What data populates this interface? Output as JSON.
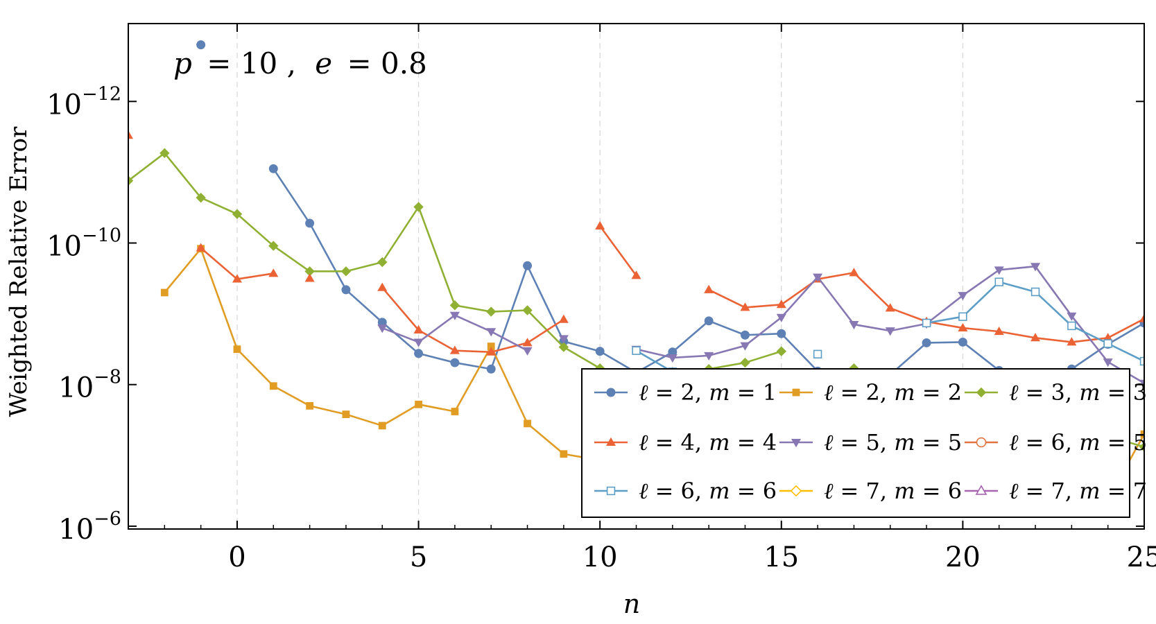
{
  "chart_data": {
    "type": "line",
    "xlabel": "n",
    "ylabel": "Weighted  Relative  Error",
    "annotation": {
      "p_label": "p",
      "p_value": "= 10 ,",
      "e_label": "e",
      "e_value": "= 0.8"
    },
    "xlim": [
      -3,
      25
    ],
    "ylim_log10": [
      -13.1,
      -5.96
    ],
    "y_scale": "log",
    "grid": true,
    "legend_position": "bottom-right",
    "x_ticks": [
      0,
      5,
      10,
      15,
      20,
      25
    ],
    "y_ticks": [
      {
        "base": "10",
        "exp": "−6",
        "value": -6
      },
      {
        "base": "10",
        "exp": "−8",
        "value": -8
      },
      {
        "base": "10",
        "exp": "−10",
        "value": -10
      },
      {
        "base": "10",
        "exp": "−12",
        "value": -12
      }
    ],
    "series": [
      {
        "name_l": "2",
        "name_m": "1",
        "color": "#5E81B5",
        "marker": "circle-filled",
        "points": [
          [
            -1,
            -12.8
          ],
          [
            1,
            -11.05
          ],
          [
            2,
            -10.28
          ],
          [
            3,
            -9.34
          ],
          [
            4,
            -8.88
          ],
          [
            5,
            -8.44
          ],
          [
            6,
            -8.31
          ],
          [
            7,
            -8.22
          ],
          [
            8,
            -9.68
          ],
          [
            9,
            -8.61
          ],
          [
            10,
            -8.47
          ],
          [
            11,
            -8.17
          ],
          [
            12,
            -8.46
          ],
          [
            13,
            -8.9
          ],
          [
            14,
            -8.7
          ],
          [
            15,
            -8.72
          ],
          [
            16,
            -8.19
          ],
          [
            17,
            -8.05
          ],
          [
            18,
            -8.14
          ],
          [
            19,
            -8.59
          ],
          [
            20,
            -8.6
          ],
          [
            21,
            -8.2
          ],
          [
            22,
            -8.13
          ],
          [
            23,
            -8.22
          ],
          [
            24,
            -8.57
          ],
          [
            25,
            -8.87
          ]
        ],
        "breaks": [
          0
        ]
      },
      {
        "name_l": "2",
        "name_m": "2",
        "color": "#E19C24",
        "marker": "square-filled",
        "points": [
          [
            -2,
            -9.3
          ],
          [
            -1,
            -9.92
          ],
          [
            0,
            -8.5
          ],
          [
            1,
            -7.98
          ],
          [
            2,
            -7.7
          ],
          [
            3,
            -7.58
          ],
          [
            4,
            -7.42
          ],
          [
            5,
            -7.72
          ],
          [
            6,
            -7.62
          ],
          [
            7,
            -8.54
          ],
          [
            8,
            -7.45
          ],
          [
            9,
            -7.02
          ],
          [
            10,
            -6.93
          ],
          [
            11,
            -6.9
          ],
          [
            12,
            -6.78
          ],
          [
            13,
            -6.61
          ],
          [
            14,
            -6.51
          ],
          [
            15,
            -6.48
          ],
          [
            16,
            -6.56
          ],
          [
            17,
            -6.7
          ],
          [
            18,
            -6.79
          ],
          [
            19,
            -6.69
          ],
          [
            20,
            -6.47
          ],
          [
            21,
            -6.29
          ],
          [
            22,
            -6.19
          ],
          [
            23,
            -6.2
          ],
          [
            24,
            -6.38
          ],
          [
            25,
            -7.3
          ]
        ],
        "breaks": []
      },
      {
        "name_l": "3",
        "name_m": "3",
        "color": "#8FB032",
        "marker": "diamond-filled",
        "points": [
          [
            -3,
            -10.88
          ],
          [
            -2,
            -11.27
          ],
          [
            -1,
            -10.64
          ],
          [
            0,
            -10.41
          ],
          [
            1,
            -9.96
          ],
          [
            2,
            -9.6
          ],
          [
            3,
            -9.6
          ],
          [
            4,
            -9.73
          ],
          [
            5,
            -10.51
          ],
          [
            6,
            -9.12
          ],
          [
            7,
            -9.03
          ],
          [
            8,
            -9.05
          ],
          [
            9,
            -8.53
          ],
          [
            10,
            -8.23
          ],
          [
            11,
            -8.13
          ],
          [
            12,
            -8.18
          ],
          [
            13,
            -8.22
          ],
          [
            14,
            -8.31
          ],
          [
            15,
            -8.47
          ],
          [
            17,
            -8.23
          ],
          [
            18,
            -7.9
          ],
          [
            19,
            -7.73
          ],
          [
            20,
            -7.64
          ],
          [
            21,
            -7.58
          ],
          [
            22,
            -7.51
          ],
          [
            23,
            -7.41
          ],
          [
            24,
            -7.27
          ],
          [
            25,
            -7.12
          ]
        ],
        "breaks": [
          15
        ]
      },
      {
        "name_l": "4",
        "name_m": "4",
        "color": "#EB6235",
        "marker": "triangle-up-filled",
        "points": [
          [
            -3,
            -11.52
          ],
          [
            -1,
            -9.93
          ],
          [
            0,
            -9.49
          ],
          [
            1,
            -9.57
          ],
          [
            2,
            -9.5
          ],
          [
            4,
            -9.37
          ],
          [
            5,
            -8.77
          ],
          [
            6,
            -8.48
          ],
          [
            7,
            -8.46
          ],
          [
            8,
            -8.59
          ],
          [
            9,
            -8.92
          ],
          [
            10,
            -10.24
          ],
          [
            11,
            -9.54
          ],
          [
            13,
            -9.34
          ],
          [
            14,
            -9.09
          ],
          [
            15,
            -9.13
          ],
          [
            16,
            -9.49
          ],
          [
            17,
            -9.58
          ],
          [
            18,
            -9.08
          ],
          [
            19,
            -8.89
          ],
          [
            20,
            -8.8
          ],
          [
            21,
            -8.75
          ],
          [
            22,
            -8.66
          ],
          [
            23,
            -8.6
          ],
          [
            24,
            -8.66
          ],
          [
            25,
            -8.93
          ]
        ],
        "breaks": [
          0,
          4,
          11
        ]
      },
      {
        "name_l": "5",
        "name_m": "5",
        "color": "#8778B3",
        "marker": "triangle-down-filled",
        "points": [
          [
            4,
            -8.8
          ],
          [
            5,
            -8.6
          ],
          [
            6,
            -8.98
          ],
          [
            7,
            -8.75
          ],
          [
            8,
            -8.48
          ],
          [
            9,
            -8.65
          ],
          [
            11,
            -8.5
          ],
          [
            12,
            -8.38
          ],
          [
            13,
            -8.41
          ],
          [
            14,
            -8.55
          ],
          [
            15,
            -8.95
          ],
          [
            16,
            -9.52
          ],
          [
            17,
            -8.85
          ],
          [
            18,
            -8.76
          ],
          [
            19,
            -8.86
          ],
          [
            20,
            -9.26
          ],
          [
            21,
            -9.62
          ],
          [
            22,
            -9.67
          ],
          [
            23,
            -8.97
          ],
          [
            24,
            -8.32
          ],
          [
            25,
            -8.02
          ]
        ],
        "breaks": [
          5
        ]
      },
      {
        "name_l": "6",
        "name_m": "6",
        "color": "#5D9EC7",
        "marker": "square-open",
        "points": [
          [
            11,
            -8.48
          ],
          [
            12,
            -8.18
          ],
          [
            13,
            -8.05
          ],
          [
            14,
            -8.06
          ],
          [
            15,
            -8.17
          ],
          [
            16,
            -8.43
          ],
          [
            19,
            -8.87
          ],
          [
            20,
            -8.96
          ],
          [
            21,
            -9.45
          ],
          [
            22,
            -9.31
          ],
          [
            23,
            -8.83
          ],
          [
            24,
            -8.58
          ],
          [
            25,
            -8.33
          ]
        ],
        "breaks": [
          5
        ]
      },
      {
        "name_l": "7",
        "name_m": "6",
        "color": "#FFBF00",
        "marker": "diamond-open",
        "points": [],
        "breaks": []
      },
      {
        "name_l": "6",
        "name_m": "5",
        "color": "#E2723F",
        "marker": "circle-open",
        "points": [],
        "breaks": []
      },
      {
        "name_l": "7",
        "name_m": "7",
        "color": "#A563B0",
        "marker": "triangle-up-open",
        "points": [
          [
            20,
            -7.77
          ],
          [
            21,
            -7.57
          ],
          [
            22,
            -7.38
          ],
          [
            23,
            -7.26
          ]
        ],
        "breaks": []
      }
    ],
    "legend_order": [
      0,
      3,
      5,
      1,
      4,
      6,
      2,
      7,
      8
    ]
  }
}
